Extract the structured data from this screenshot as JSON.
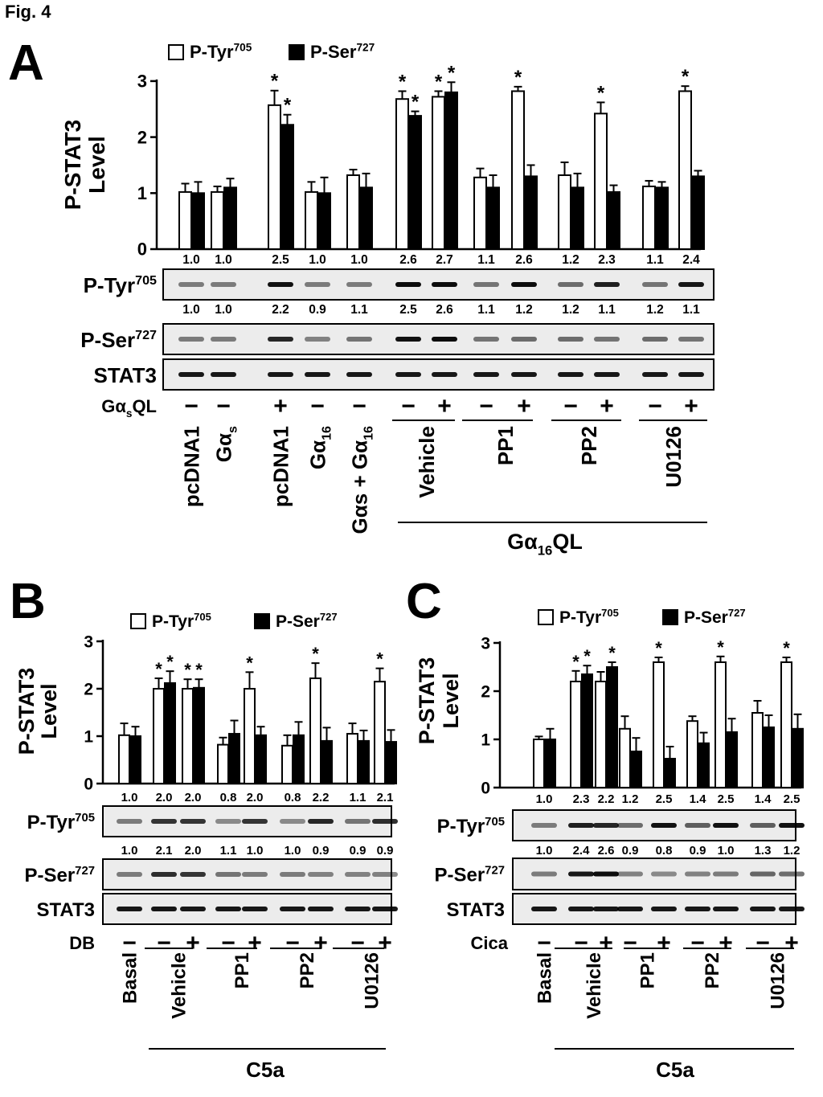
{
  "figure_label": "Fig. 4",
  "panels": [
    {
      "letter": "A",
      "legend": {
        "open": "P-Tyr",
        "open_sup": "705",
        "filled": "P-Ser",
        "filled_sup": "727"
      },
      "ylabel_1": "P-STAT3",
      "ylabel_2": "Level",
      "yticks": [
        "0",
        "1",
        "2",
        "3"
      ],
      "tyr_ratios": [
        "1.0",
        "1.0",
        "2.5",
        "1.0",
        "1.0",
        "2.6",
        "2.7",
        "1.1",
        "2.6",
        "1.2",
        "2.3",
        "1.1",
        "2.4"
      ],
      "ser_ratios": [
        "1.0",
        "1.0",
        "2.2",
        "0.9",
        "1.1",
        "2.5",
        "2.6",
        "1.1",
        "1.2",
        "1.2",
        "1.1",
        "1.2",
        "1.1"
      ],
      "blot_tyr": {
        "name": "P-Tyr",
        "sup": "705"
      },
      "blot_ser": {
        "name": "P-Ser",
        "sup": "727"
      },
      "blot_stat3": "STAT3",
      "treat_label": {
        "base": "Gα",
        "sub": "s",
        "rest": "QL"
      },
      "signs": [
        "−",
        "−",
        "+",
        "−",
        "−",
        "−",
        "+",
        "−",
        "+",
        "−",
        "+",
        "−",
        "+"
      ],
      "group_labels": [
        "pcDNA1",
        "Gαs",
        "pcDNA1",
        "Gα16",
        "Gαs + Gα16",
        "Vehicle",
        "PP1",
        "PP2",
        "U0126"
      ],
      "bottom_label": {
        "base": "Gα",
        "sub": "16",
        "rest": "QL"
      }
    },
    {
      "letter": "B",
      "legend": {
        "open": "P-Tyr",
        "open_sup": "705",
        "filled": "P-Ser",
        "filled_sup": "727"
      },
      "ylabel_1": "P-STAT3",
      "ylabel_2": "Level",
      "yticks": [
        "0",
        "1",
        "2",
        "3"
      ],
      "tyr_ratios": [
        "1.0",
        "2.0",
        "2.0",
        "0.8",
        "2.0",
        "0.8",
        "2.2",
        "1.1",
        "2.1"
      ],
      "ser_ratios": [
        "1.0",
        "2.1",
        "2.0",
        "1.1",
        "1.0",
        "1.0",
        "0.9",
        "0.9",
        "0.9"
      ],
      "blot_tyr": {
        "name": "P-Tyr",
        "sup": "705"
      },
      "blot_ser": {
        "name": "P-Ser",
        "sup": "727"
      },
      "blot_stat3": "STAT3",
      "treat_label": "DB",
      "signs": [
        "−",
        "−",
        "+",
        "−",
        "+",
        "−",
        "+",
        "−",
        "+"
      ],
      "group_labels": [
        "Basal",
        "Vehicle",
        "PP1",
        "PP2",
        "U0126"
      ],
      "bottom_label": "C5a"
    },
    {
      "letter": "C",
      "legend": {
        "open": "P-Tyr",
        "open_sup": "705",
        "filled": "P-Ser",
        "filled_sup": "727"
      },
      "ylabel_1": "P-STAT3",
      "ylabel_2": "Level",
      "yticks": [
        "0",
        "1",
        "2",
        "3"
      ],
      "tyr_ratios": [
        "1.0",
        "2.3",
        "2.2",
        "1.2",
        "2.5",
        "1.4",
        "2.5",
        "1.4",
        "2.5"
      ],
      "ser_ratios": [
        "1.0",
        "2.4",
        "2.6",
        "0.9",
        "0.8",
        "0.9",
        "1.0",
        "1.3",
        "1.2"
      ],
      "blot_tyr": {
        "name": "P-Tyr",
        "sup": "705"
      },
      "blot_ser": {
        "name": "P-Ser",
        "sup": "727"
      },
      "blot_stat3": "STAT3",
      "treat_label": "Cica",
      "signs": [
        "−",
        "−",
        "+",
        "−",
        "+",
        "−",
        "+",
        "−",
        "+"
      ],
      "group_labels": [
        "Basal",
        "Vehicle",
        "PP1",
        "PP2",
        "U0126"
      ],
      "bottom_label": "C5a"
    }
  ],
  "chart_data": [
    {
      "panel": "A",
      "type": "bar",
      "ylim": [
        0,
        3
      ],
      "ylabel": "P-STAT3 Level",
      "series": [
        {
          "name": "P-Tyr705",
          "fill": "open",
          "values": [
            1.02,
            1.02,
            2.57,
            1.02,
            1.32,
            2.68,
            2.72,
            1.28,
            2.82,
            1.32,
            2.42,
            1.12,
            2.82
          ],
          "errors": [
            0.15,
            0.1,
            0.26,
            0.18,
            0.1,
            0.14,
            0.1,
            0.16,
            0.08,
            0.23,
            0.2,
            0.1,
            0.09
          ],
          "sig": [
            0,
            0,
            1,
            0,
            0,
            1,
            1,
            0,
            1,
            0,
            1,
            0,
            1
          ]
        },
        {
          "name": "P-Ser727",
          "fill": "solid",
          "values": [
            1.0,
            1.1,
            2.22,
            1.0,
            1.1,
            2.38,
            2.8,
            1.1,
            1.3,
            1.1,
            1.02,
            1.1,
            1.3
          ],
          "errors": [
            0.2,
            0.16,
            0.18,
            0.28,
            0.25,
            0.08,
            0.18,
            0.22,
            0.2,
            0.25,
            0.12,
            0.1,
            0.1
          ],
          "sig": [
            0,
            0,
            1,
            0,
            0,
            1,
            1,
            0,
            0,
            0,
            0,
            0,
            0
          ]
        }
      ]
    },
    {
      "panel": "B",
      "type": "bar",
      "ylim": [
        0,
        3
      ],
      "ylabel": "P-STAT3 Level",
      "series": [
        {
          "name": "P-Tyr705",
          "fill": "open",
          "values": [
            1.02,
            2.0,
            2.0,
            0.82,
            2.0,
            0.8,
            2.22,
            1.05,
            2.15
          ],
          "errors": [
            0.25,
            0.22,
            0.2,
            0.15,
            0.35,
            0.22,
            0.32,
            0.22,
            0.28
          ],
          "sig": [
            0,
            1,
            1,
            0,
            1,
            0,
            1,
            0,
            1
          ]
        },
        {
          "name": "P-Ser727",
          "fill": "solid",
          "values": [
            1.0,
            2.12,
            2.02,
            1.05,
            1.02,
            1.02,
            0.9,
            0.9,
            0.88
          ],
          "errors": [
            0.2,
            0.25,
            0.18,
            0.28,
            0.18,
            0.28,
            0.28,
            0.22,
            0.25
          ],
          "sig": [
            0,
            1,
            1,
            0,
            0,
            0,
            0,
            0,
            0
          ]
        }
      ]
    },
    {
      "panel": "C",
      "type": "bar",
      "ylim": [
        0,
        3
      ],
      "ylabel": "P-STAT3 Level",
      "series": [
        {
          "name": "P-Tyr705",
          "fill": "open",
          "values": [
            1.0,
            2.2,
            2.2,
            1.22,
            2.6,
            1.38,
            2.6,
            1.55,
            2.6
          ],
          "errors": [
            0.06,
            0.22,
            0.2,
            0.26,
            0.1,
            0.1,
            0.12,
            0.25,
            0.1
          ],
          "sig": [
            0,
            1,
            0,
            0,
            1,
            0,
            1,
            0,
            1
          ]
        },
        {
          "name": "P-Ser727",
          "fill": "solid",
          "values": [
            1.0,
            2.35,
            2.5,
            0.75,
            0.6,
            0.92,
            1.15,
            1.25,
            1.22
          ],
          "errors": [
            0.22,
            0.18,
            0.1,
            0.28,
            0.25,
            0.22,
            0.28,
            0.25,
            0.3
          ],
          "sig": [
            0,
            1,
            1,
            0,
            0,
            0,
            0,
            0,
            0
          ]
        }
      ]
    }
  ]
}
